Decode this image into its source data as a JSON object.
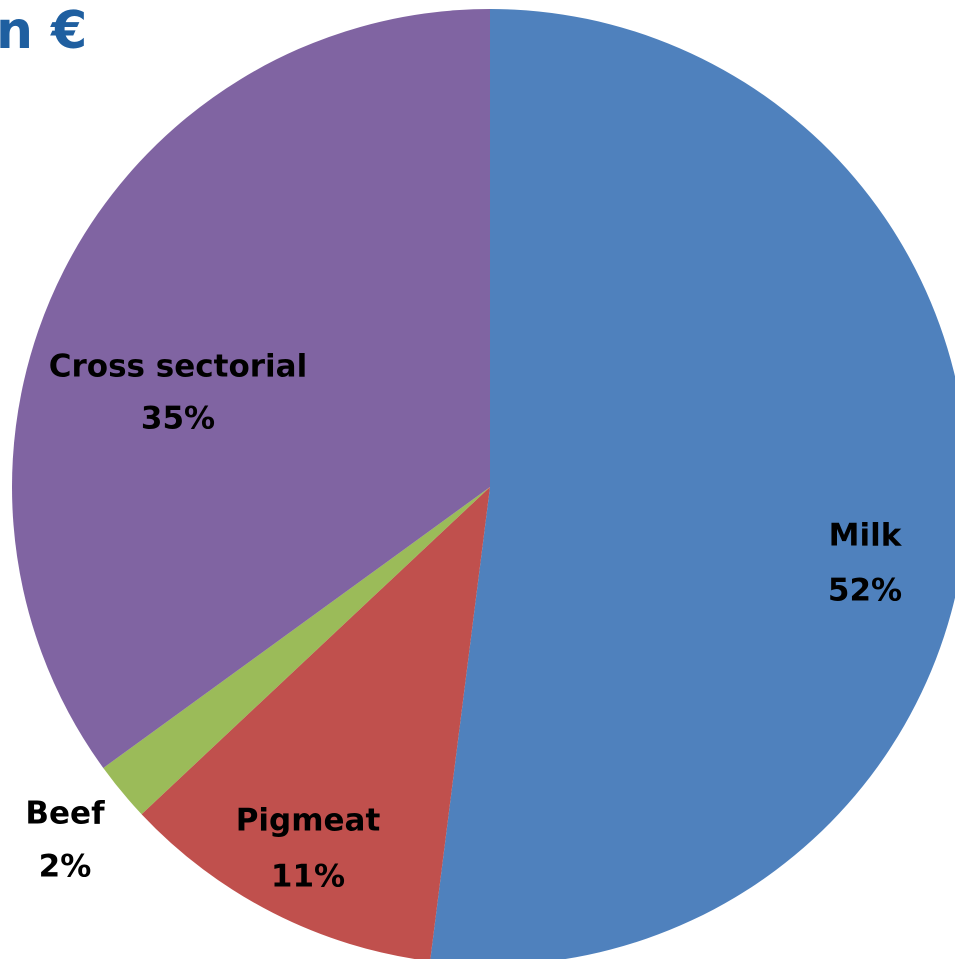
{
  "chart_data": {
    "type": "pie",
    "title": "n €",
    "categories": [
      "Milk",
      "Pigmeat",
      "Beef",
      "Cross sectorial"
    ],
    "values": [
      52,
      11,
      2,
      35
    ],
    "value_labels": [
      "52%",
      "11%",
      "2%",
      "35%"
    ],
    "colors": [
      "#4f81bd",
      "#c0504d",
      "#9bbb59",
      "#8064a2"
    ]
  }
}
